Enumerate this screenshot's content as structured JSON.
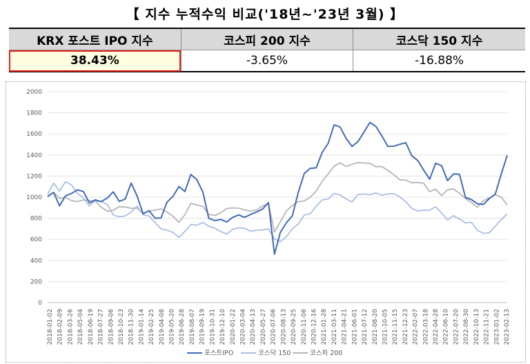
{
  "page_title": "【  지수  누적수익  비교('18년~'23년 3월)  】",
  "summary_table": {
    "headers": [
      "KRX 포스트 IPO 지수",
      "코스피 200 지수",
      "코스닥 150 지수"
    ],
    "values": [
      "38.43%",
      "-3.65%",
      "-16.88%"
    ],
    "highlight_color": "#e0201b"
  },
  "chart_data": {
    "type": "line",
    "ylim": [
      0,
      2000
    ],
    "yticks": [
      "0",
      "200",
      "400",
      "600",
      "800",
      "1000",
      "1200",
      "1400",
      "1600",
      "1800",
      "2000"
    ],
    "x_tick_labels": [
      "2018-01-02",
      "2018-02-09",
      "2018-03-26",
      "2018-05-04",
      "2018-06-19",
      "2018-07-27",
      "2018-09-06",
      "2018-10-23",
      "2018-11-30",
      "2019-01-14",
      "2019-02-25",
      "2019-04-08",
      "2019-05-20",
      "2019-06-28",
      "2019-08-07",
      "2019-09-19",
      "2019-10-31",
      "2019-12-10",
      "2020-01-22",
      "2020-03-04",
      "2020-04-13",
      "2020-05-27",
      "2020-07-06",
      "2020-08-13",
      "2020-09-25",
      "2020-11-06",
      "2020-12-16",
      "2021-01-28",
      "2021-03-11",
      "2021-04-21",
      "2021-06-01",
      "2021-07-12",
      "2021-08-20",
      "2021-10-05",
      "2021-11-15",
      "2021-12-23",
      "2022-02-07",
      "2022-03-18",
      "2022-04-28",
      "2022-06-10",
      "2022-07-20",
      "2022-08-30",
      "2022-10-13",
      "2022-11-21",
      "2023-01-02",
      "2023-02-13"
    ],
    "grid": true,
    "legend_position": "bottom",
    "series": [
      {
        "name": "포스트IPO",
        "color": "#4169b6",
        "values": [
          1005,
          1080,
          950,
          1010,
          1000,
          1040,
          1060,
          980,
          1000,
          950,
          960,
          1030,
          970,
          1010,
          1150,
          1000,
          820,
          860,
          810,
          820,
          960,
          1000,
          1090,
          1050,
          1220,
          1170,
          1050,
          800,
          780,
          790,
          760,
          800,
          830,
          820,
          850,
          860,
          870,
          930,
          460,
          690,
          780,
          820,
          1020,
          1200,
          1280,
          1310,
          1450,
          1500,
          1650,
          1640,
          1570,
          1520,
          1550,
          1600,
          1670,
          1650,
          1600,
          1520,
          1500,
          1480,
          1480,
          1380,
          1370,
          1290,
          1180,
          1300,
          1270,
          1150,
          1240,
          1240,
          1000,
          960,
          920,
          930,
          1000,
          1040,
          1220,
          1390
        ]
      },
      {
        "name": "코스닥 150",
        "color": "#a9bee0",
        "values": [
          1060,
          1150,
          1040,
          1110,
          1100,
          1060,
          1030,
          930,
          940,
          920,
          920,
          860,
          850,
          830,
          830,
          880,
          830,
          850,
          790,
          700,
          660,
          640,
          620,
          700,
          760,
          730,
          740,
          710,
          710,
          690,
          660,
          690,
          700,
          700,
          680,
          690,
          690,
          700,
          610,
          580,
          620,
          690,
          740,
          840,
          860,
          920,
          960,
          960,
          1030,
          1040,
          1010,
          960,
          1000,
          1000,
          1020,
          1070,
          1050,
          1030,
          1000,
          970,
          960,
          930,
          900,
          870,
          840,
          880,
          860,
          820,
          850,
          780,
          720,
          740,
          700,
          690,
          680,
          710,
          760,
          830
        ]
      },
      {
        "name": "코스피 200",
        "color": "#b5b5b5",
        "values": [
          1010,
          1030,
          970,
          1000,
          990,
          980,
          970,
          940,
          940,
          910,
          900,
          900,
          900,
          870,
          870,
          910,
          880,
          890,
          860,
          850,
          840,
          840,
          800,
          850,
          920,
          890,
          900,
          860,
          860,
          860,
          870,
          870,
          890,
          900,
          890,
          880,
          900,
          920,
          670,
          780,
          880,
          920,
          950,
          960,
          1000,
          1060,
          1150,
          1220,
          1300,
          1330,
          1290,
          1300,
          1320,
          1330,
          1340,
          1300,
          1280,
          1230,
          1200,
          1180,
          1190,
          1150,
          1120,
          1100,
          1040,
          1100,
          1050,
          1080,
          1050,
          1000,
          980,
          980,
          940,
          970,
          960,
          990,
          1000,
          960
        ]
      }
    ]
  }
}
